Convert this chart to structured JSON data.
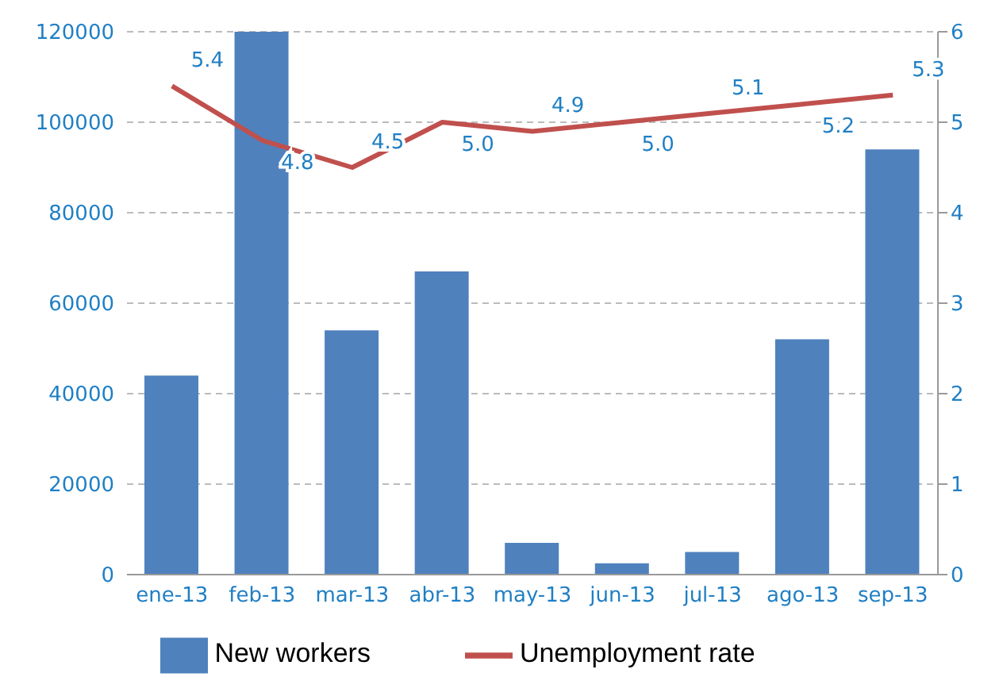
{
  "chart_data": {
    "type": "bar",
    "categories": [
      "ene-13",
      "feb-13",
      "mar-13",
      "abr-13",
      "may-13",
      "jun-13",
      "jul-13",
      "ago-13",
      "sep-13"
    ],
    "series": [
      {
        "name": "New workers",
        "color": "#4f81bd",
        "values": [
          44000,
          120000,
          54000,
          67000,
          7000,
          2500,
          5000,
          52000,
          94000
        ]
      },
      {
        "name": "Unemployment rate",
        "type": "line",
        "axis": "y2",
        "color": "#c0504d",
        "values": [
          5.4,
          4.8,
          4.5,
          5.0,
          4.9,
          5.0,
          5.1,
          5.2,
          5.3
        ],
        "value_labels": [
          "5.4",
          "4.8",
          "4.5",
          "5.0",
          "4.9",
          "5.0",
          "5.1",
          "5.2",
          "5.3"
        ]
      }
    ],
    "ylim": [
      0,
      120000
    ],
    "yticks": [
      0,
      20000,
      40000,
      60000,
      80000,
      100000,
      120000
    ],
    "y2lim": [
      0,
      6
    ],
    "y2ticks": [
      0,
      1,
      2,
      3,
      4,
      5,
      6
    ],
    "grid": "y",
    "legend": "bottom",
    "marker": "none"
  }
}
